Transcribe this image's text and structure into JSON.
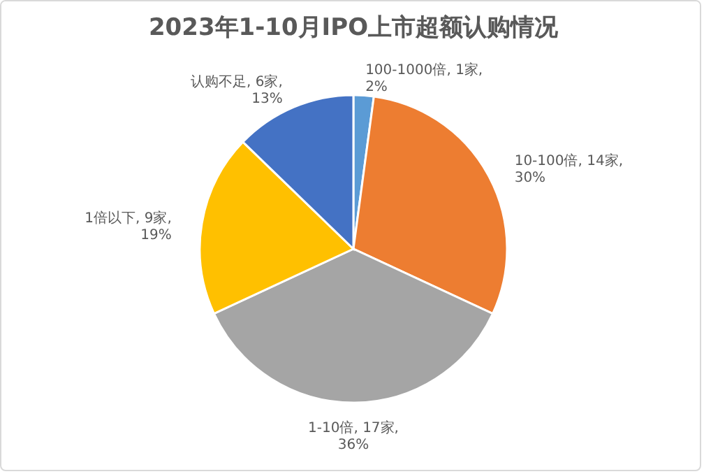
{
  "chart_data": {
    "type": "pie",
    "title": "2023年1-10月IPO上市超额认购情况",
    "categories": [
      "100-1000倍",
      "10-100倍",
      "1-10倍",
      "1倍以下",
      "认购不足"
    ],
    "values": [
      1,
      14,
      17,
      9,
      6
    ],
    "colors": [
      "#5b9bd5",
      "#ed7d31",
      "#a5a5a5",
      "#ffc000",
      "#4472c4"
    ],
    "value_labels": [
      "1家,\n2%",
      "14家,\n30%",
      "17家,\n36%",
      "9家,\n19%",
      "6家,\n13%"
    ],
    "legend": false
  }
}
